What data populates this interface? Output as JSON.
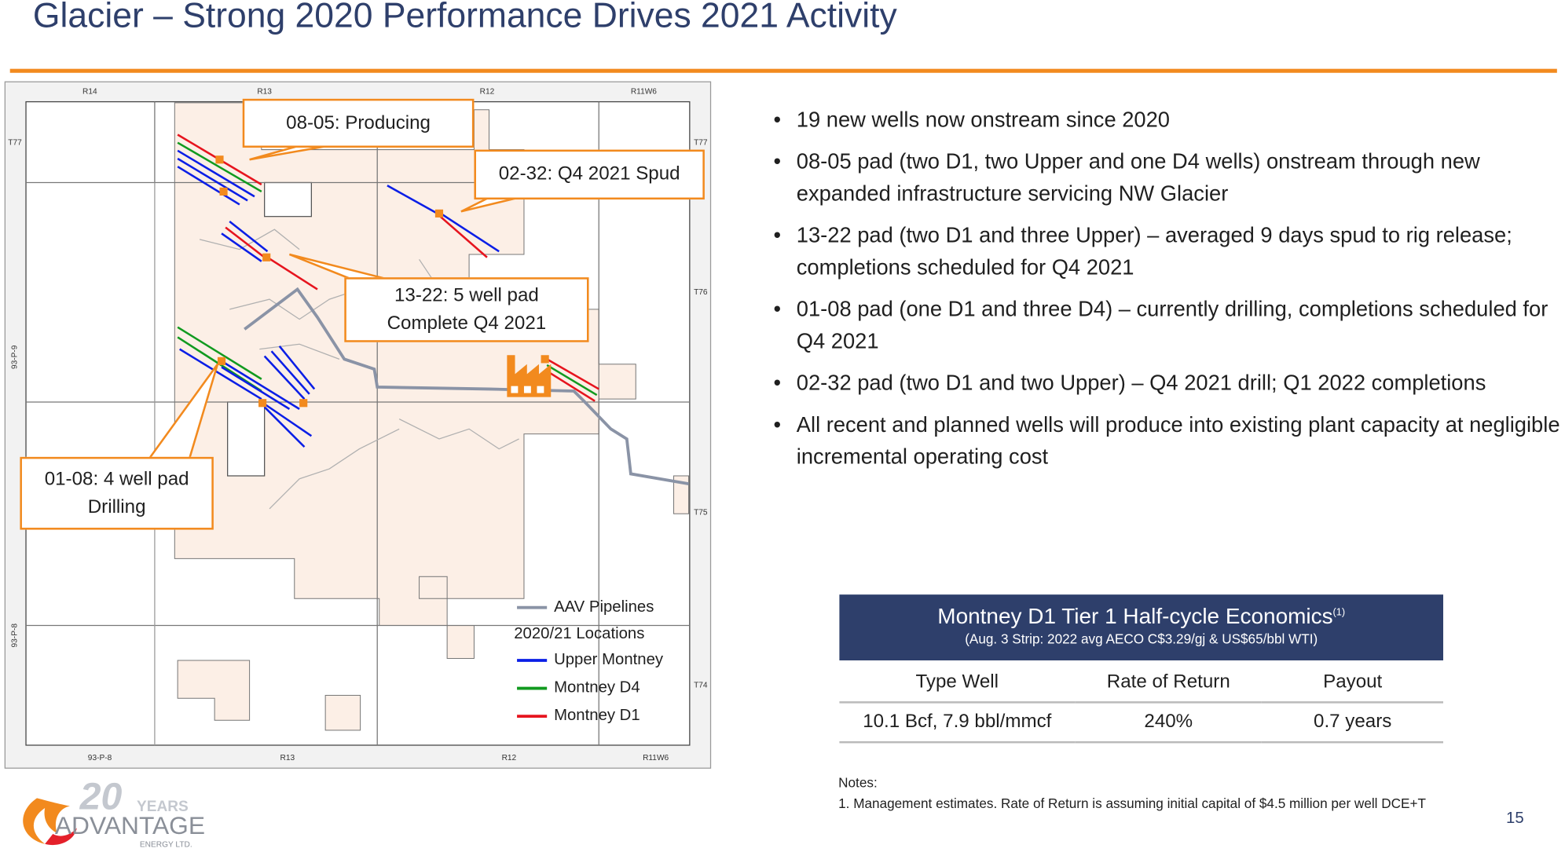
{
  "title": "Glacier – Strong 2020 Performance Drives 2021 Activity",
  "map": {
    "grid_labels": {
      "top": [
        "R14",
        "R13",
        "R12",
        "R11W6"
      ],
      "bottom": [
        "93-P-8",
        "R13",
        "R12",
        "R11W6"
      ],
      "left": [
        "T77",
        "93-P-9",
        "93-P-8"
      ],
      "right": [
        "T77",
        "T76",
        "T75",
        "T74"
      ]
    },
    "callouts": [
      "08-05: Producing",
      "02-32: Q4 2021 Spud",
      "13-22: 5 well pad\nComplete Q4 2021",
      "01-08: 4 well pad\nDrilling"
    ],
    "legend": {
      "pipelines": "AAV Pipelines",
      "locations_title": "2020/21 Locations",
      "items": [
        "Upper Montney",
        "Montney D4",
        "Montney D1"
      ]
    }
  },
  "bullets": [
    "19 new wells now onstream since 2020",
    "08-05 pad (two D1, two Upper and one D4 wells) onstream through new expanded infrastructure servicing NW Glacier",
    "13-22 pad (two D1 and three Upper) – averaged 9 days spud to rig release; completions scheduled for Q4 2021",
    "01-08 pad (one D1 and three D4) – currently drilling, completions scheduled for Q4 2021",
    "02-32 pad (two D1 and two Upper) – Q4 2021 drill; Q1 2022 completions",
    "All recent and planned wells will produce into existing plant capacity at negligible incremental operating cost"
  ],
  "table": {
    "title": "Montney D1 Tier 1 Half-cycle Economics",
    "title_note": "(1)",
    "subtitle": "(Aug. 3 Strip: 2022 avg AECO C$3.29/gj & US$65/bbl WTI)",
    "columns": [
      "Type Well",
      "Rate of Return",
      "Payout"
    ],
    "rows": [
      [
        "10.1 Bcf, 7.9 bbl/mmcf",
        "240%",
        "0.7 years"
      ]
    ]
  },
  "notes": {
    "heading": "Notes:",
    "items": [
      "1. Management estimates.  Rate of Return is assuming initial capital of $4.5 million per well DCE+T"
    ]
  },
  "page_number": "15",
  "logo": {
    "years_number": "20",
    "years_word": "YEARS",
    "name": "ADVANTAGE",
    "subtitle": "ENERGY LTD."
  }
}
